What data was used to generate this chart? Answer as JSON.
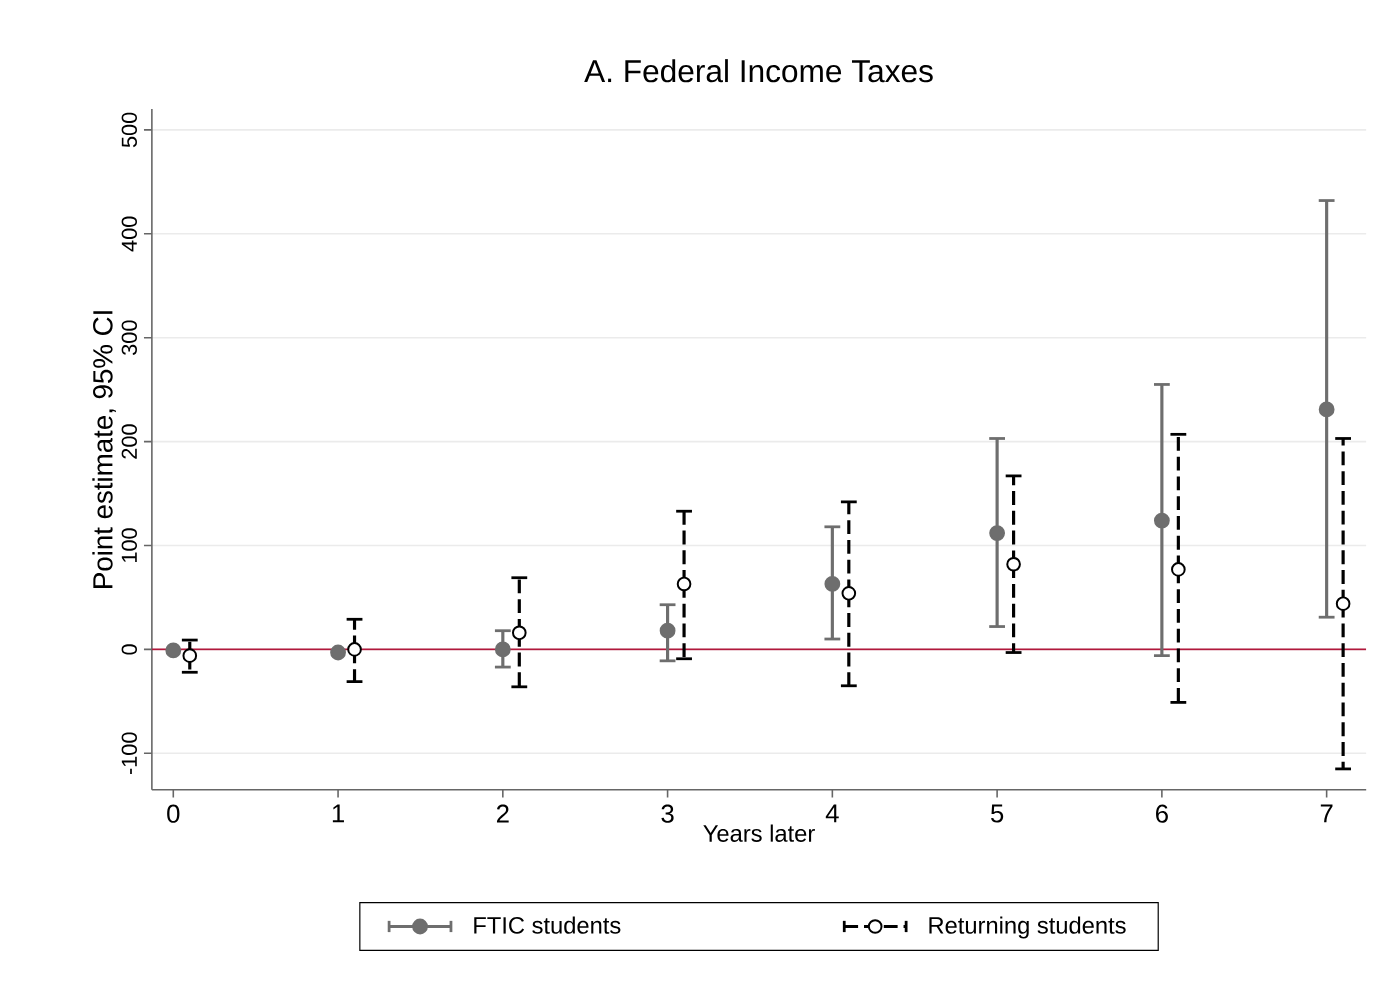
{
  "chart_data": {
    "type": "scatter",
    "title": "A. Federal Income Taxes",
    "xlabel": "Years later",
    "ylabel": "Point estimate, 95% CI",
    "xlim": [
      -0.13,
      7.24
    ],
    "xticks": [
      0,
      1,
      2,
      3,
      4,
      5,
      6,
      7
    ],
    "ylim": [
      -135,
      520
    ],
    "yticks": [
      -100,
      0,
      100,
      200,
      300,
      400,
      500
    ],
    "grid": "y",
    "legend": "bottom",
    "marker": "circle",
    "ref_lines": [
      {
        "axis": "y",
        "value": 0,
        "color": "#b2183c"
      }
    ],
    "series": [
      {
        "name": "FTIC students",
        "color": "#6e6e6e",
        "line_style": "solid",
        "x": [
          0,
          1,
          2,
          3,
          4,
          5,
          6,
          7
        ],
        "values": [
          -1,
          -3,
          0,
          18,
          63,
          112,
          124,
          231
        ],
        "errors": [
          null,
          null,
          [
            -17,
            18
          ],
          [
            -11,
            43
          ],
          [
            10,
            118
          ],
          [
            22,
            203
          ],
          [
            -6,
            255
          ],
          [
            31,
            432
          ]
        ]
      },
      {
        "name": "Returning students",
        "color": "#000000",
        "line_style": "dashed",
        "x": [
          0.1,
          1.1,
          2.1,
          3.1,
          4.1,
          5.1,
          6.1,
          7.1
        ],
        "values": [
          -6,
          0,
          16,
          63,
          54,
          82,
          77,
          44
        ],
        "errors": [
          [
            -22,
            9
          ],
          [
            -31,
            29
          ],
          [
            -36,
            69
          ],
          [
            -9,
            133
          ],
          [
            -35,
            142
          ],
          [
            -3,
            167
          ],
          [
            -51,
            207
          ],
          [
            -115,
            203
          ]
        ]
      }
    ]
  }
}
